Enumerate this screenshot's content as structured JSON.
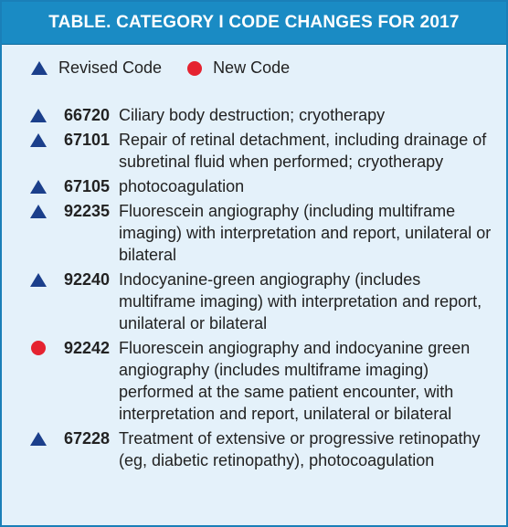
{
  "title": "TABLE.  CATEGORY I CODE CHANGES FOR 2017",
  "legend": {
    "revised_label": "Revised Code",
    "new_label": "New Code"
  },
  "colors": {
    "header_bg": "#1a8bc4",
    "panel_bg": "#e4f1fa",
    "revised_marker": "#1b3f8b",
    "new_marker": "#e52330"
  },
  "rows": [
    {
      "marker": "triangle-icon",
      "code": "66720",
      "description": "Ciliary body destruction; cryotherapy"
    },
    {
      "marker": "triangle-icon",
      "code": "67101",
      "description": "Repair of retinal detachment, including drainage of subretinal fluid when performed; cryotherapy"
    },
    {
      "marker": "triangle-icon",
      "code": "67105",
      "description": "photocoagulation"
    },
    {
      "marker": "triangle-icon",
      "code": "92235",
      "description": "Fluorescein angiography (including multiframe imaging) with interpretation and report, unilateral or bilateral"
    },
    {
      "marker": "triangle-icon",
      "code": "92240",
      "description": "Indocyanine-green angiography (includes multiframe imaging) with interpretation and report, unilateral or bilateral"
    },
    {
      "marker": "circle-icon",
      "code": "92242",
      "description": "Fluorescein angiography and indocyanine green angiography (includes multiframe imaging) performed at the same patient encounter, with interpretation and report, unilateral or bilateral"
    },
    {
      "marker": "triangle-icon",
      "code": "67228",
      "description": "Treatment of extensive or progressive retinopathy (eg, diabetic retinopathy), photocoagulation"
    }
  ]
}
